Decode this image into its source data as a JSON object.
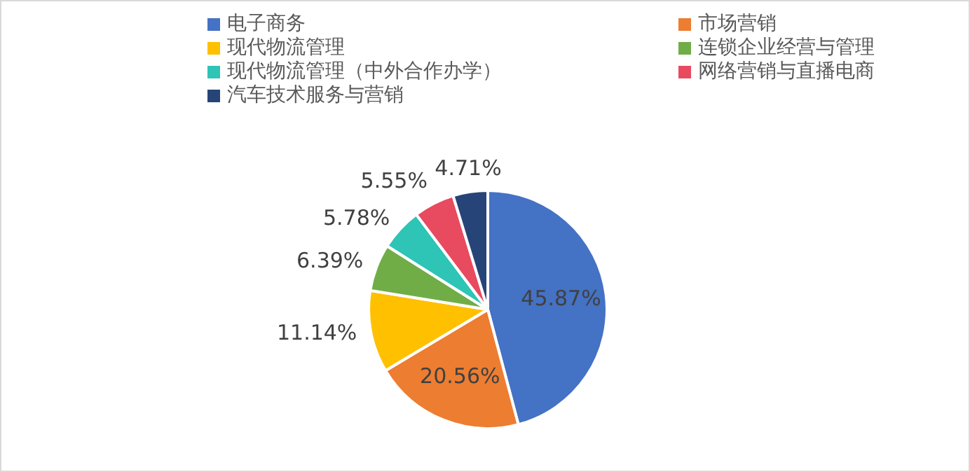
{
  "chart_data": {
    "type": "pie",
    "categories": [
      "电子商务",
      "市场营销",
      "现代物流管理",
      "连锁企业经营与管理",
      "现代物流管理（中外合作办学）",
      "网络营销与直播电商",
      "汽车技术服务与营销"
    ],
    "values": [
      45.87,
      20.56,
      11.14,
      6.39,
      5.78,
      5.55,
      4.71
    ],
    "colors": [
      "#4472c4",
      "#ed7d31",
      "#ffc000",
      "#70ad47",
      "#2ec4b6",
      "#e84a5f",
      "#264478"
    ],
    "value_labels": [
      "45.87%",
      "20.56%",
      "11.14%",
      "6.39%",
      "5.78%",
      "5.55%",
      "4.71%"
    ],
    "legend": "top"
  }
}
